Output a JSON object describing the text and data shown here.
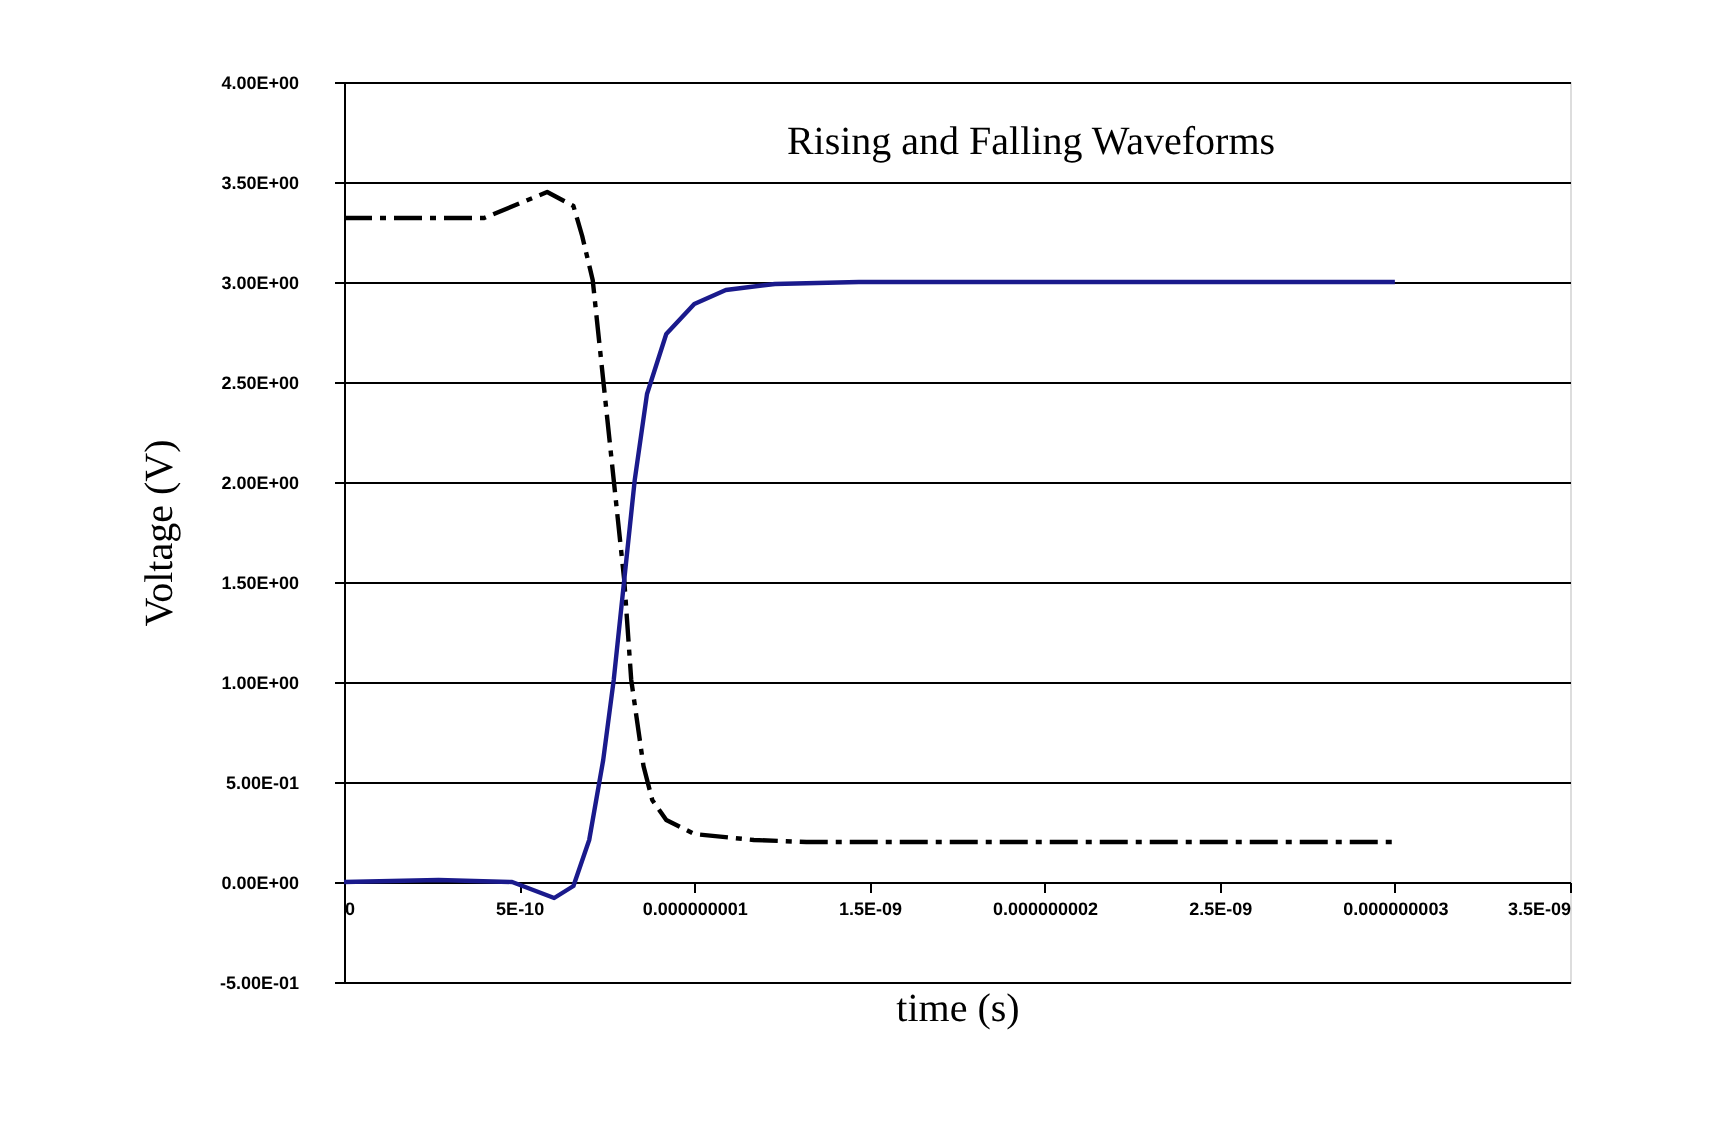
{
  "chart_data": {
    "type": "line",
    "title": "Rising and Falling Waveforms",
    "xlabel": "time (s)",
    "ylabel": "Voltage (V)",
    "xlim": [
      0,
      3.5e-09
    ],
    "ylim": [
      -0.5,
      4.0
    ],
    "xticks": [
      {
        "value": 0,
        "label": "0"
      },
      {
        "value": 5e-10,
        "label": "5E-10"
      },
      {
        "value": 1e-09,
        "label": "0.000000001"
      },
      {
        "value": 1.5e-09,
        "label": "1.5E-09"
      },
      {
        "value": 2e-09,
        "label": "0.000000002"
      },
      {
        "value": 2.5e-09,
        "label": "2.5E-09"
      },
      {
        "value": 3e-09,
        "label": "0.000000003"
      },
      {
        "value": 3.5e-09,
        "label": "3.5E-09"
      }
    ],
    "yticks": [
      {
        "value": -0.5,
        "label": "-5.00E-01"
      },
      {
        "value": 0,
        "label": "0.00E+00"
      },
      {
        "value": 0.5,
        "label": "5.00E-01"
      },
      {
        "value": 1.0,
        "label": "1.00E+00"
      },
      {
        "value": 1.5,
        "label": "1.50E+00"
      },
      {
        "value": 2.0,
        "label": "2.00E+00"
      },
      {
        "value": 2.5,
        "label": "2.50E+00"
      },
      {
        "value": 3.0,
        "label": "3.00E+00"
      },
      {
        "value": 3.5,
        "label": "3.50E+00"
      },
      {
        "value": 4.0,
        "label": "4.00E+00"
      }
    ],
    "grid": "y",
    "marker": "none",
    "series": [
      {
        "color": "#000000",
        "line_style": "dashed",
        "x": [
          0,
          4e-10,
          5.8e-10,
          6.55e-10,
          6.8e-10,
          7.1e-10,
          7.4e-10,
          7.7e-10,
          8e-10,
          8.2e-10,
          8.55e-10,
          8.8e-10,
          9.2e-10,
          1e-09,
          1.17e-09,
          1.32e-09,
          3e-09
        ],
        "values": [
          3.32,
          3.32,
          3.45,
          3.38,
          3.23,
          3.01,
          2.51,
          2.01,
          1.51,
          1.01,
          0.58,
          0.41,
          0.31,
          0.24,
          0.21,
          0.2,
          0.2
        ]
      },
      {
        "color": "#1a1a8c",
        "line_style": "solid",
        "x": [
          0,
          2.7e-10,
          4.8e-10,
          6e-10,
          6.55e-10,
          7e-10,
          7.4e-10,
          7.7e-10,
          8e-10,
          8.3e-10,
          8.65e-10,
          9.2e-10,
          1e-09,
          1.09e-09,
          1.23e-09,
          1.47e-09,
          3e-09
        ],
        "values": [
          0,
          0.01,
          0,
          -0.08,
          -0.02,
          0.21,
          0.61,
          1.01,
          1.51,
          2.01,
          2.44,
          2.74,
          2.89,
          2.96,
          2.99,
          3.0,
          3.0
        ]
      }
    ]
  }
}
